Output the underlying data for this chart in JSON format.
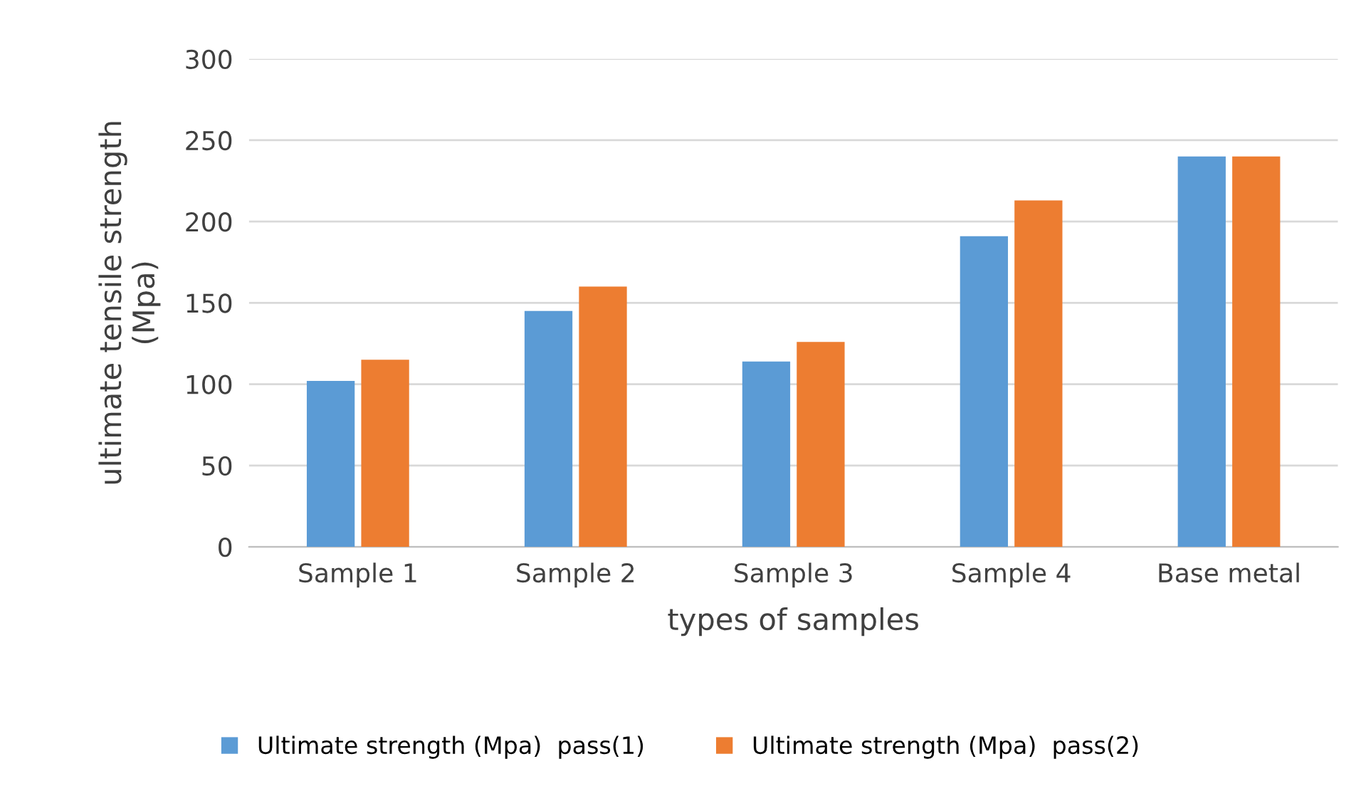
{
  "chart_data": {
    "type": "bar",
    "xlabel": "types of samples",
    "ylabel": "ultimate tensile strength\n(Mpa)",
    "categories": [
      "Sample 1",
      "Sample 2",
      "Sample 3",
      "Sample 4",
      "Base metal"
    ],
    "series": [
      {
        "name": "Ultimate strength (Mpa)  pass(1)",
        "color": "#5b9bd5",
        "values": [
          102,
          145,
          114,
          191,
          240
        ]
      },
      {
        "name": "Ultimate strength (Mpa)  pass(2)",
        "color": "#ed7d31",
        "values": [
          115,
          160,
          126,
          213,
          240
        ]
      }
    ],
    "ylim": [
      0,
      300
    ],
    "yticks": [
      0,
      50,
      100,
      150,
      200,
      250,
      300
    ],
    "grid": "y",
    "legend": "bottom"
  }
}
